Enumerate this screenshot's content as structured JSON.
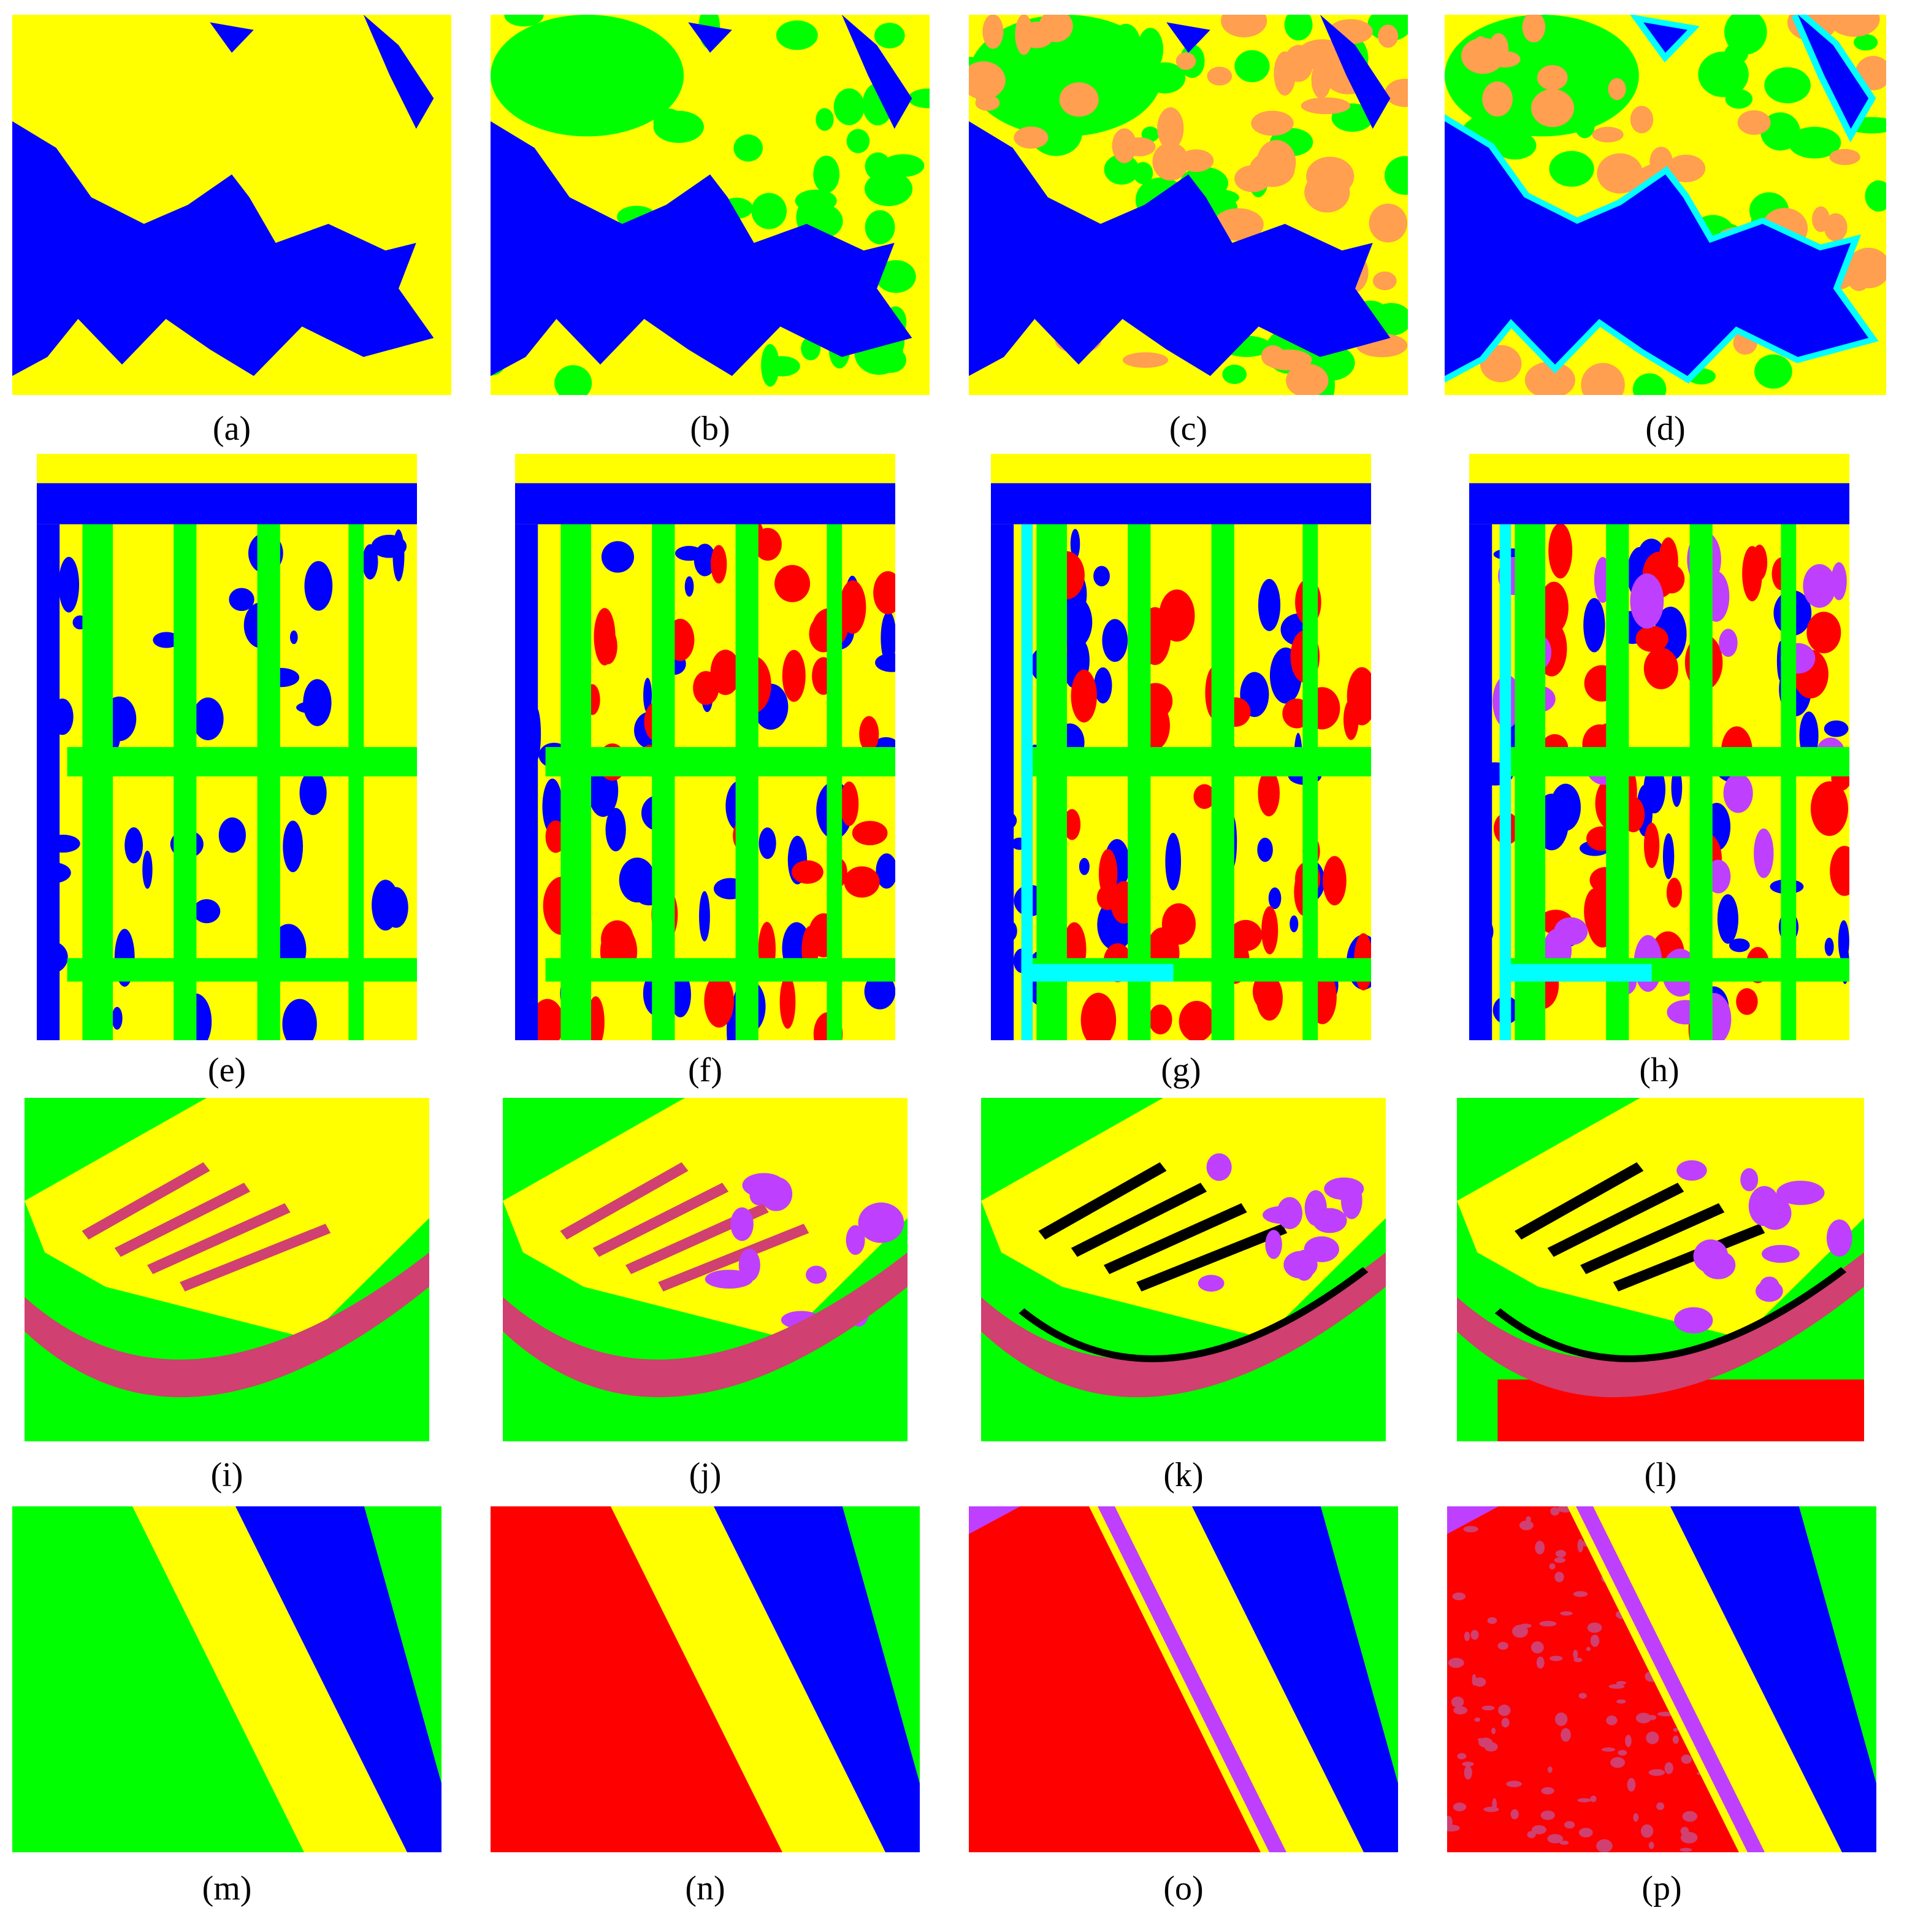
{
  "labels": [
    "(a)",
    "(b)",
    "(c)",
    "(d)",
    "(e)",
    "(f)",
    "(g)",
    "(h)",
    "(i)",
    "(j)",
    "(k)",
    "(l)",
    "(m)",
    "(n)",
    "(o)",
    "(p)"
  ]
}
